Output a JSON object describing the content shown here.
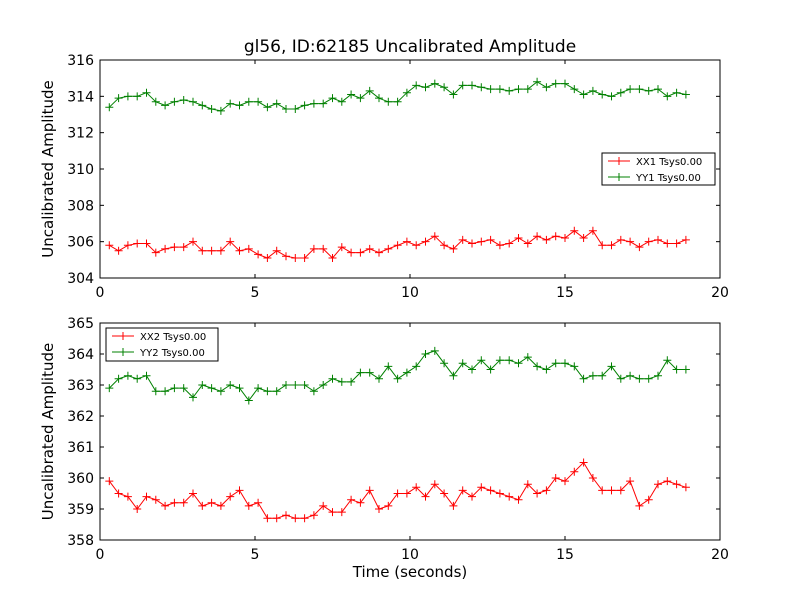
{
  "colors": {
    "xx": "#ff0000",
    "yy": "#008000",
    "background": "#ffffff",
    "axes": "#000000"
  },
  "chart_data": [
    {
      "type": "line",
      "title": "gl56, ID:62185 Uncalibrated Amplitude",
      "xlabel": "",
      "ylabel": "Uncalibrated Amplitude",
      "xlim": [
        0,
        20
      ],
      "ylim": [
        304,
        316
      ],
      "xticks": [
        "0",
        "5",
        "10",
        "15",
        "20"
      ],
      "yticks": [
        "304",
        "306",
        "308",
        "310",
        "312",
        "314",
        "316"
      ],
      "grid": false,
      "legend_position": "center-right",
      "series": [
        {
          "name": "XX1 Tsys0.00",
          "color": "#ff0000",
          "x": [
            0.3,
            0.6,
            0.9,
            1.2,
            1.5,
            1.8,
            2.1,
            2.4,
            2.7,
            3.0,
            3.3,
            3.6,
            3.9,
            4.2,
            4.5,
            4.8,
            5.1,
            5.4,
            5.7,
            6.0,
            6.3,
            6.6,
            6.9,
            7.2,
            7.5,
            7.8,
            8.1,
            8.4,
            8.7,
            9.0,
            9.3,
            9.6,
            9.9,
            10.2,
            10.5,
            10.8,
            11.1,
            11.4,
            11.7,
            12.0,
            12.3,
            12.6,
            12.9,
            13.2,
            13.5,
            13.8,
            14.1,
            14.4,
            14.7,
            15.0,
            15.3,
            15.6,
            15.9,
            16.2,
            16.5,
            16.8,
            17.1,
            17.4,
            17.7,
            18.0,
            18.3,
            18.6,
            18.9
          ],
          "y": [
            305.8,
            305.5,
            305.8,
            305.9,
            305.9,
            305.4,
            305.6,
            305.7,
            305.7,
            306.0,
            305.5,
            305.5,
            305.5,
            306.0,
            305.5,
            305.6,
            305.3,
            305.1,
            305.5,
            305.2,
            305.1,
            305.1,
            305.6,
            305.6,
            305.1,
            305.7,
            305.4,
            305.4,
            305.6,
            305.4,
            305.6,
            305.8,
            306.0,
            305.8,
            306.0,
            306.3,
            305.8,
            305.6,
            306.1,
            305.9,
            306.0,
            306.1,
            305.8,
            305.9,
            306.2,
            305.9,
            306.3,
            306.1,
            306.3,
            306.2,
            306.6,
            306.2,
            306.6,
            305.8,
            305.8,
            306.1,
            306.0,
            305.7,
            306.0,
            306.1,
            305.9,
            305.9,
            306.1
          ]
        },
        {
          "name": "YY1 Tsys0.00",
          "color": "#008000",
          "x": [
            0.3,
            0.6,
            0.9,
            1.2,
            1.5,
            1.8,
            2.1,
            2.4,
            2.7,
            3.0,
            3.3,
            3.6,
            3.9,
            4.2,
            4.5,
            4.8,
            5.1,
            5.4,
            5.7,
            6.0,
            6.3,
            6.6,
            6.9,
            7.2,
            7.5,
            7.8,
            8.1,
            8.4,
            8.7,
            9.0,
            9.3,
            9.6,
            9.9,
            10.2,
            10.5,
            10.8,
            11.1,
            11.4,
            11.7,
            12.0,
            12.3,
            12.6,
            12.9,
            13.2,
            13.5,
            13.8,
            14.1,
            14.4,
            14.7,
            15.0,
            15.3,
            15.6,
            15.9,
            16.2,
            16.5,
            16.8,
            17.1,
            17.4,
            17.7,
            18.0,
            18.3,
            18.6,
            18.9
          ],
          "y": [
            313.4,
            313.9,
            314.0,
            314.0,
            314.2,
            313.7,
            313.5,
            313.7,
            313.8,
            313.7,
            313.5,
            313.3,
            313.2,
            313.6,
            313.5,
            313.7,
            313.7,
            313.4,
            313.6,
            313.3,
            313.3,
            313.5,
            313.6,
            313.6,
            313.9,
            313.7,
            314.1,
            313.9,
            314.3,
            313.9,
            313.7,
            313.7,
            314.2,
            314.6,
            314.5,
            314.7,
            314.5,
            314.1,
            314.6,
            314.6,
            314.5,
            314.4,
            314.4,
            314.3,
            314.4,
            314.4,
            314.8,
            314.5,
            314.7,
            314.7,
            314.4,
            314.1,
            314.3,
            314.1,
            314.0,
            314.2,
            314.4,
            314.4,
            314.3,
            314.4,
            314.0,
            314.2,
            314.1
          ]
        }
      ]
    },
    {
      "type": "line",
      "title": "",
      "xlabel": "Time (seconds)",
      "ylabel": "Uncalibrated Amplitude",
      "xlim": [
        0,
        20
      ],
      "ylim": [
        358,
        365
      ],
      "xticks": [
        "0",
        "5",
        "10",
        "15",
        "20"
      ],
      "yticks": [
        "358",
        "359",
        "360",
        "361",
        "362",
        "363",
        "364",
        "365"
      ],
      "grid": false,
      "legend_position": "top-left",
      "series": [
        {
          "name": "XX2 Tsys0.00",
          "color": "#ff0000",
          "x": [
            0.3,
            0.6,
            0.9,
            1.2,
            1.5,
            1.8,
            2.1,
            2.4,
            2.7,
            3.0,
            3.3,
            3.6,
            3.9,
            4.2,
            4.5,
            4.8,
            5.1,
            5.4,
            5.7,
            6.0,
            6.3,
            6.6,
            6.9,
            7.2,
            7.5,
            7.8,
            8.1,
            8.4,
            8.7,
            9.0,
            9.3,
            9.6,
            9.9,
            10.2,
            10.5,
            10.8,
            11.1,
            11.4,
            11.7,
            12.0,
            12.3,
            12.6,
            12.9,
            13.2,
            13.5,
            13.8,
            14.1,
            14.4,
            14.7,
            15.0,
            15.3,
            15.6,
            15.9,
            16.2,
            16.5,
            16.8,
            17.1,
            17.4,
            17.7,
            18.0,
            18.3,
            18.6,
            18.9
          ],
          "y": [
            359.9,
            359.5,
            359.4,
            359.0,
            359.4,
            359.3,
            359.1,
            359.2,
            359.2,
            359.5,
            359.1,
            359.2,
            359.1,
            359.4,
            359.6,
            359.1,
            359.2,
            358.7,
            358.7,
            358.8,
            358.7,
            358.7,
            358.8,
            359.1,
            358.9,
            358.9,
            359.3,
            359.2,
            359.6,
            359.0,
            359.1,
            359.5,
            359.5,
            359.7,
            359.4,
            359.8,
            359.5,
            359.1,
            359.6,
            359.4,
            359.7,
            359.6,
            359.5,
            359.4,
            359.3,
            359.8,
            359.5,
            359.6,
            360.0,
            359.9,
            360.2,
            360.5,
            360.0,
            359.6,
            359.6,
            359.6,
            359.9,
            359.1,
            359.3,
            359.8,
            359.9,
            359.8,
            359.7
          ]
        },
        {
          "name": "YY2 Tsys0.00",
          "color": "#008000",
          "x": [
            0.3,
            0.6,
            0.9,
            1.2,
            1.5,
            1.8,
            2.1,
            2.4,
            2.7,
            3.0,
            3.3,
            3.6,
            3.9,
            4.2,
            4.5,
            4.8,
            5.1,
            5.4,
            5.7,
            6.0,
            6.3,
            6.6,
            6.9,
            7.2,
            7.5,
            7.8,
            8.1,
            8.4,
            8.7,
            9.0,
            9.3,
            9.6,
            9.9,
            10.2,
            10.5,
            10.8,
            11.1,
            11.4,
            11.7,
            12.0,
            12.3,
            12.6,
            12.9,
            13.2,
            13.5,
            13.8,
            14.1,
            14.4,
            14.7,
            15.0,
            15.3,
            15.6,
            15.9,
            16.2,
            16.5,
            16.8,
            17.1,
            17.4,
            17.7,
            18.0,
            18.3,
            18.6,
            18.9
          ],
          "y": [
            362.9,
            363.2,
            363.3,
            363.2,
            363.3,
            362.8,
            362.8,
            362.9,
            362.9,
            362.6,
            363.0,
            362.9,
            362.8,
            363.0,
            362.9,
            362.5,
            362.9,
            362.8,
            362.8,
            363.0,
            363.0,
            363.0,
            362.8,
            363.0,
            363.2,
            363.1,
            363.1,
            363.4,
            363.4,
            363.2,
            363.6,
            363.2,
            363.4,
            363.6,
            364.0,
            364.1,
            363.7,
            363.3,
            363.7,
            363.5,
            363.8,
            363.5,
            363.8,
            363.8,
            363.7,
            363.9,
            363.6,
            363.5,
            363.7,
            363.7,
            363.6,
            363.2,
            363.3,
            363.3,
            363.6,
            363.2,
            363.3,
            363.2,
            363.2,
            363.3,
            363.8,
            363.5,
            363.5
          ]
        }
      ]
    }
  ]
}
